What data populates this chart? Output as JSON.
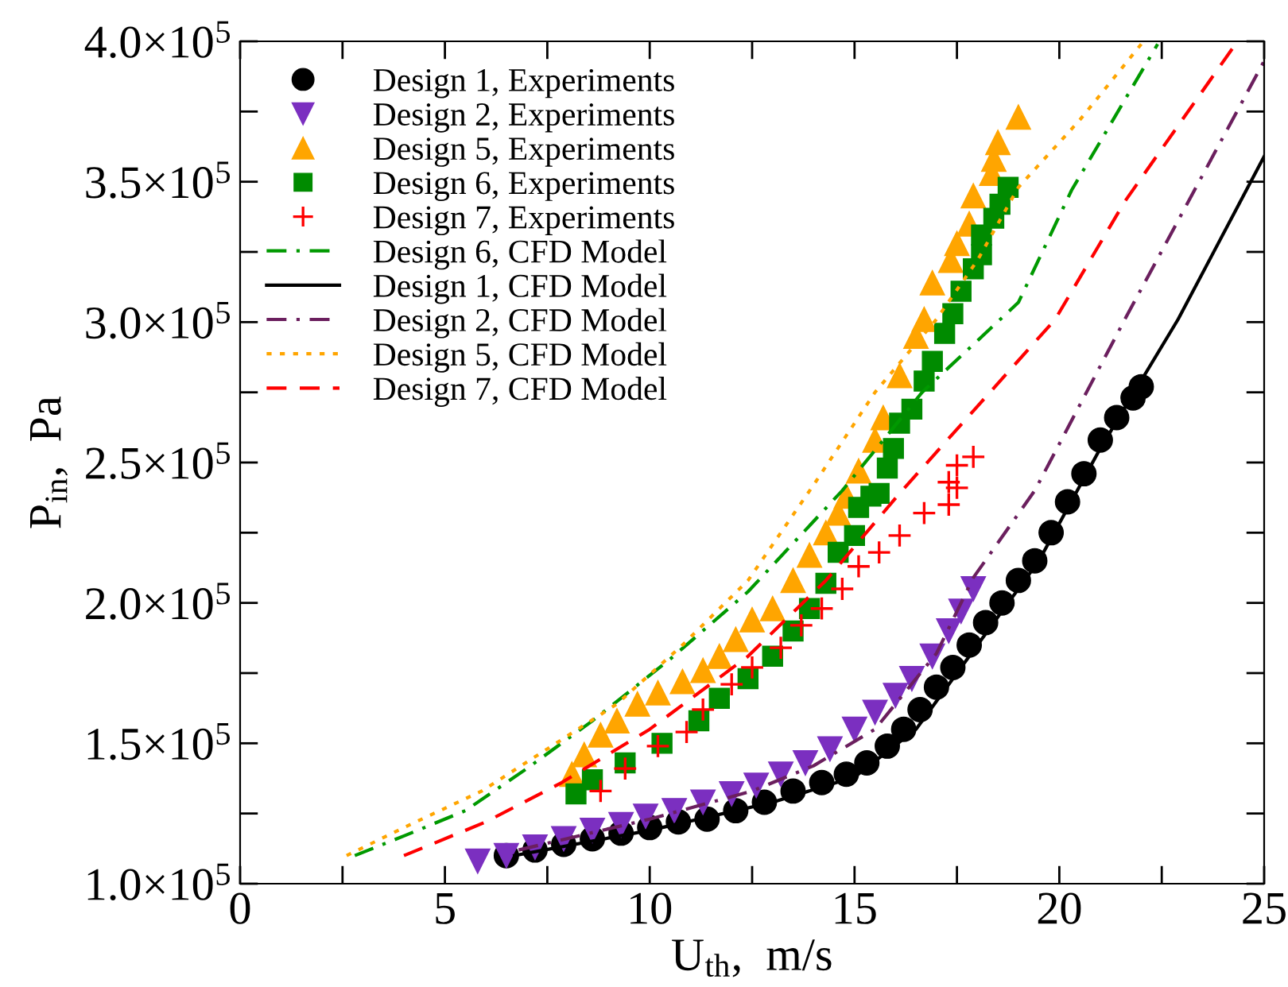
{
  "chart_data": {
    "type": "scatter",
    "xlabel": "U$_{th}$,  m/s",
    "ylabel": "P$_{in}$,  Pa",
    "xlim": [
      0,
      25
    ],
    "ylim": [
      100000,
      400000
    ],
    "xticks": [
      0,
      {
        "value": 2.5,
        "label": null
      },
      5,
      {
        "value": 7.5,
        "label": null
      },
      10,
      {
        "value": 12.5,
        "label": null
      },
      15,
      {
        "value": 17.5,
        "label": null
      },
      20,
      {
        "value": 22.5,
        "label": null
      },
      25
    ],
    "yticks": [
      {
        "value": 100000,
        "label": "1.0×10$^{5}$"
      },
      {
        "value": 125000,
        "label": null
      },
      {
        "value": 150000,
        "label": "1.5×10$^{5}$"
      },
      {
        "value": 175000,
        "label": null
      },
      {
        "value": 200000,
        "label": "2.0×10$^{5}$"
      },
      {
        "value": 225000,
        "label": null
      },
      {
        "value": 250000,
        "label": "2.5×10$^{5}$"
      },
      {
        "value": 275000,
        "label": null
      },
      {
        "value": 300000,
        "label": "3.0×10$^{5}$"
      },
      {
        "value": 325000,
        "label": null
      },
      {
        "value": 350000,
        "label": "3.5×10$^{5}$"
      },
      {
        "value": 375000,
        "label": null
      },
      {
        "value": 400000,
        "label": "4.0×10$^{5}$"
      }
    ],
    "grid": false,
    "legend": "top left",
    "series": [
      {
        "name": "Design 1, Experiments",
        "marker": "circle",
        "color": "#000000",
        "x": [
          6.5,
          7.2,
          7.9,
          8.6,
          9.3,
          10.0,
          10.7,
          11.4,
          12.1,
          12.8,
          13.5,
          14.2,
          14.8,
          15.3,
          15.8,
          16.2,
          16.6,
          17.0,
          17.4,
          17.8,
          18.2,
          18.6,
          19.0,
          19.4,
          19.8,
          20.2,
          20.6,
          21.0,
          21.4,
          21.8,
          22.0
        ],
        "values": [
          110000,
          112000,
          114000,
          116000,
          118000,
          120000,
          122000,
          123000,
          126000,
          129000,
          133000,
          136000,
          139000,
          143000,
          149000,
          155000,
          162000,
          170000,
          177000,
          185000,
          193000,
          200000,
          208000,
          215000,
          225000,
          236000,
          246000,
          258000,
          266000,
          273000,
          277000
        ]
      },
      {
        "name": "Design 2, Experiments",
        "marker": "triangle_down",
        "color": "#7b2fc0",
        "x": [
          5.8,
          6.5,
          7.2,
          7.9,
          8.6,
          9.3,
          9.9,
          10.6,
          11.3,
          12.0,
          12.6,
          13.2,
          13.8,
          14.4,
          15.0,
          15.5,
          16.0,
          16.4,
          16.9,
          17.3,
          17.6,
          17.9
        ],
        "values": [
          108000,
          110000,
          113000,
          116000,
          119000,
          121000,
          124000,
          126000,
          129000,
          132000,
          135000,
          139000,
          143000,
          148000,
          155000,
          161000,
          167000,
          173000,
          181000,
          190000,
          197000,
          205000
        ]
      },
      {
        "name": "Design 5, Experiments",
        "marker": "triangle",
        "color": "#ffa500",
        "x": [
          8.1,
          8.4,
          8.8,
          9.2,
          9.7,
          10.2,
          10.8,
          11.3,
          11.7,
          12.1,
          12.5,
          13.0,
          13.5,
          13.9,
          14.3,
          14.6,
          14.8,
          15.1,
          15.5,
          15.7,
          16.1,
          16.5,
          16.7,
          16.9,
          17.35,
          17.5,
          17.8,
          17.9,
          18.35,
          18.4,
          18.5,
          19.0
        ],
        "values": [
          139000,
          146000,
          153000,
          158000,
          164000,
          168000,
          172000,
          176000,
          181000,
          187000,
          194000,
          198000,
          208000,
          217000,
          225000,
          232000,
          238000,
          247000,
          258000,
          266000,
          281000,
          295000,
          301000,
          314000,
          322000,
          328000,
          335000,
          345000,
          353000,
          358000,
          364000,
          373000
        ]
      },
      {
        "name": "Design 6, Experiments",
        "marker": "square",
        "color": "#008b00",
        "x": [
          8.2,
          8.6,
          9.4,
          10.3,
          11.2,
          11.7,
          12.4,
          13.0,
          13.5,
          13.9,
          14.3,
          14.6,
          15.0,
          15.1,
          15.4,
          15.6,
          15.8,
          15.95,
          16.1,
          16.4,
          16.7,
          16.9,
          17.2,
          17.4,
          17.6,
          17.9,
          18.1,
          18.1,
          18.4,
          18.55,
          18.75
        ],
        "values": [
          132000,
          137000,
          143000,
          150000,
          158000,
          166000,
          173000,
          181000,
          190000,
          198000,
          207000,
          218000,
          224000,
          234000,
          238000,
          239000,
          248000,
          255000,
          264000,
          269000,
          279000,
          286000,
          296000,
          303000,
          311000,
          319000,
          324000,
          331000,
          337000,
          342000,
          348000
        ]
      },
      {
        "name": "Design 7, Experiments",
        "marker": "plus",
        "color": "#ff0000",
        "x": [
          8.8,
          9.4,
          10.2,
          10.9,
          11.3,
          12.0,
          12.5,
          13.2,
          13.7,
          14.2,
          14.7,
          15.1,
          15.6,
          16.1,
          16.7,
          17.3,
          17.3,
          17.5,
          17.5,
          17.9
        ],
        "values": [
          133000,
          141000,
          149000,
          154000,
          162000,
          171000,
          177000,
          184000,
          192000,
          198000,
          205000,
          213000,
          218000,
          224000,
          232000,
          235000,
          243000,
          241000,
          249000,
          252000
        ]
      },
      {
        "name": "Design 6, CFD Model",
        "type": "line",
        "line_style": "dashdot",
        "marker": "none",
        "color": "#009900",
        "x": [
          2.8,
          4.0,
          5.5,
          7.0,
          8.6,
          10.5,
          12.4,
          14.7,
          16.65,
          19.0,
          20.3,
          22.4
        ],
        "values": [
          110000,
          117000,
          126000,
          141000,
          158000,
          180000,
          204000,
          240000,
          275000,
          307000,
          347000,
          399000
        ]
      },
      {
        "name": "Design 1, CFD Model",
        "type": "line",
        "line_style": "solid",
        "marker": "none",
        "color": "#000000",
        "x": [
          6.7,
          10,
          13,
          15,
          16.5,
          18,
          19.5,
          21,
          22.9,
          25
        ],
        "values": [
          110000,
          119000,
          129000,
          138000,
          155000,
          185000,
          215000,
          255000,
          301000,
          359000
        ]
      },
      {
        "name": "Design 2, CFD Model",
        "type": "line",
        "line_style": "dashdot",
        "marker": "none",
        "color": "#6b1f5e",
        "x": [
          6.8,
          10,
          12.5,
          14,
          15.5,
          17,
          17.9,
          19.4,
          21.6,
          25
        ],
        "values": [
          112000,
          123000,
          133000,
          142000,
          155000,
          182000,
          209000,
          240000,
          301000,
          393000
        ]
      },
      {
        "name": "Design 5, CFD Model",
        "type": "line",
        "line_style": "dotted",
        "marker": "none",
        "color": "#ffa500",
        "x": [
          2.6,
          4.0,
          5.9,
          7.5,
          9.2,
          10.8,
          12.4,
          14.0,
          15.5,
          17.0,
          18.0,
          19.0,
          20.5,
          22.0
        ],
        "values": [
          110000,
          120000,
          133000,
          148000,
          164000,
          185000,
          208000,
          242000,
          275000,
          301000,
          322000,
          348000,
          372000,
          399000
        ]
      },
      {
        "name": "Design 7, CFD Model",
        "type": "line",
        "line_style": "dashed",
        "marker": "none",
        "color": "#ff0000",
        "x": [
          4.0,
          6.0,
          7.85,
          10.0,
          12.4,
          14.3,
          16.1,
          18.0,
          19.9,
          21.6,
          24.3
        ],
        "values": [
          110000,
          122000,
          136000,
          155000,
          181000,
          208000,
          239000,
          270000,
          301000,
          343000,
          399000
        ]
      }
    ]
  }
}
